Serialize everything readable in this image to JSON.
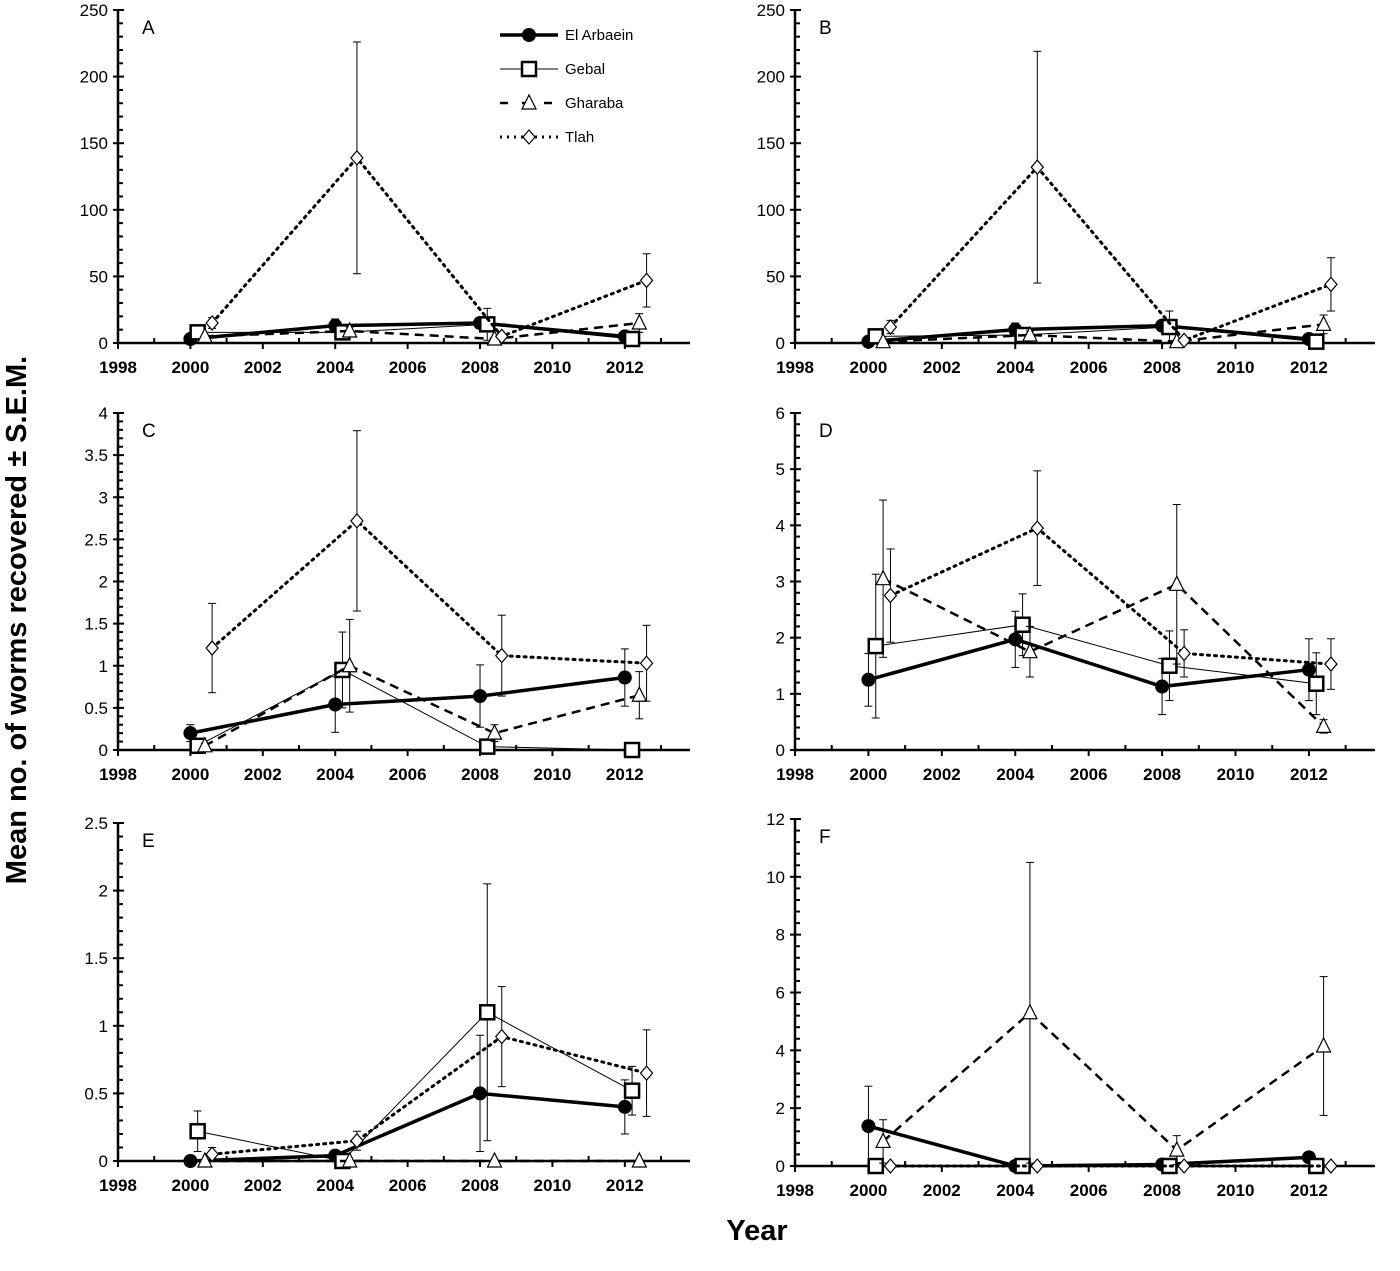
{
  "chart_data": {
    "type": "line",
    "ylabel": "Mean no. of worms recovered ± S.E.M.",
    "xlabel": "Year",
    "legend": {
      "placement": "top-right of panel A",
      "entries": [
        "El Arbaein",
        "Gebal",
        "Gharaba",
        "Tlah"
      ]
    },
    "series_styles": [
      {
        "name": "El Arbaein",
        "marker": "filled-circle",
        "line": "thick-solid"
      },
      {
        "name": "Gebal",
        "marker": "open-square",
        "line": "thin-solid"
      },
      {
        "name": "Gharaba",
        "marker": "open-triangle",
        "line": "dashed"
      },
      {
        "name": "Tlah",
        "marker": "open-diamond",
        "line": "dotted"
      }
    ],
    "xlim": [
      1998,
      2013.8
    ],
    "xticks": [
      1998,
      2000,
      2002,
      2004,
      2006,
      2008,
      2010,
      2012
    ],
    "panels": [
      {
        "label": "A",
        "ylim": [
          0,
          250
        ],
        "yticks": [
          0,
          50,
          100,
          150,
          200,
          250
        ],
        "series": [
          {
            "name": "El Arbaein",
            "x": [
              2000,
              2004,
              2008,
              2012
            ],
            "y": [
              3,
              13,
              15,
              5
            ],
            "err": [
              1,
              5,
              4,
              2
            ]
          },
          {
            "name": "Gebal",
            "x": [
              2000.2,
              2004.2,
              2008.2,
              2012.2
            ],
            "y": [
              8,
              8,
              14,
              3
            ],
            "err": [
              2,
              2,
              12,
              1
            ]
          },
          {
            "name": "Gharaba",
            "x": [
              2000.4,
              2004.4,
              2008.4,
              2012.4
            ],
            "y": [
              5,
              9,
              3,
              15
            ],
            "err": [
              1,
              3,
              1,
              7
            ]
          },
          {
            "name": "Tlah",
            "x": [
              2000.6,
              2004.6,
              2008.6,
              2012.6
            ],
            "y": [
              15,
              139,
              5,
              47
            ],
            "err": [
              4,
              87,
              2,
              20
            ]
          }
        ]
      },
      {
        "label": "B",
        "ylim": [
          0,
          250
        ],
        "yticks": [
          0,
          50,
          100,
          150,
          200,
          250
        ],
        "series": [
          {
            "name": "El Arbaein",
            "x": [
              2000,
              2004,
              2008,
              2012
            ],
            "y": [
              1,
              10,
              13,
              3
            ],
            "err": [
              1,
              5,
              4,
              1
            ]
          },
          {
            "name": "Gebal",
            "x": [
              2000.2,
              2004.2,
              2008.2,
              2012.2
            ],
            "y": [
              5,
              6,
              12,
              1
            ],
            "err": [
              2,
              2,
              12,
              1
            ]
          },
          {
            "name": "Gharaba",
            "x": [
              2000.4,
              2004.4,
              2008.4,
              2012.4
            ],
            "y": [
              1,
              6,
              1,
              14
            ],
            "err": [
              1,
              3,
              1,
              7
            ]
          },
          {
            "name": "Tlah",
            "x": [
              2000.6,
              2004.6,
              2008.6,
              2012.6
            ],
            "y": [
              12,
              132,
              2,
              44
            ],
            "err": [
              5,
              87,
              1,
              20
            ]
          }
        ]
      },
      {
        "label": "C",
        "ylim": [
          0,
          4
        ],
        "yticks": [
          0,
          0.5,
          1,
          1.5,
          2,
          2.5,
          3,
          3.5,
          4
        ],
        "series": [
          {
            "name": "El Arbaein",
            "x": [
              2000,
              2004,
              2008,
              2012
            ],
            "y": [
              0.2,
              0.54,
              0.64,
              0.86
            ],
            "err": [
              0.1,
              0.33,
              0.37,
              0.34
            ]
          },
          {
            "name": "Gebal",
            "x": [
              2000.2,
              2004.2,
              2008.2,
              2012.2
            ],
            "y": [
              0.05,
              0.95,
              0.04,
              0
            ],
            "err": [
              0.03,
              0.45,
              0.02,
              0
            ]
          },
          {
            "name": "Gharaba",
            "x": [
              2000.4,
              2004.4,
              2008.4,
              2012.4
            ],
            "y": [
              0.05,
              1.0,
              0.2,
              0.65
            ],
            "err": [
              0.03,
              0.55,
              0.1,
              0.28
            ]
          },
          {
            "name": "Tlah",
            "x": [
              2000.6,
              2004.6,
              2008.6,
              2012.6
            ],
            "y": [
              1.21,
              2.72,
              1.12,
              1.03
            ],
            "err": [
              0.53,
              1.07,
              0.48,
              0.45
            ]
          }
        ]
      },
      {
        "label": "D",
        "ylim": [
          0,
          6
        ],
        "yticks": [
          0,
          1,
          2,
          3,
          4,
          5,
          6
        ],
        "series": [
          {
            "name": "El Arbaein",
            "x": [
              2000,
              2004,
              2008,
              2012
            ],
            "y": [
              1.25,
              1.97,
              1.13,
              1.43
            ],
            "err": [
              0.47,
              0.5,
              0.5,
              0.55
            ]
          },
          {
            "name": "Gebal",
            "x": [
              2000.2,
              2004.2,
              2008.2,
              2012.2
            ],
            "y": [
              1.85,
              2.23,
              1.5,
              1.18
            ],
            "err": [
              1.28,
              0.55,
              0.62,
              0.55
            ]
          },
          {
            "name": "Gharaba",
            "x": [
              2000.4,
              2004.4,
              2008.4,
              2012.4
            ],
            "y": [
              3.05,
              1.75,
              2.95,
              0.42
            ],
            "err": [
              1.4,
              0.45,
              1.42,
              0.12
            ]
          },
          {
            "name": "Tlah",
            "x": [
              2000.6,
              2004.6,
              2008.6,
              2012.6
            ],
            "y": [
              2.75,
              3.95,
              1.72,
              1.53
            ],
            "err": [
              0.83,
              1.02,
              0.42,
              0.45
            ]
          }
        ]
      },
      {
        "label": "E",
        "ylim": [
          0,
          2.5
        ],
        "yticks": [
          0,
          0.5,
          1,
          1.5,
          2,
          2.5
        ],
        "series": [
          {
            "name": "El Arbaein",
            "x": [
              2000,
              2004,
              2008,
              2012
            ],
            "y": [
              0,
              0.04,
              0.5,
              0.4
            ],
            "err": [
              0,
              0.02,
              0.43,
              0.2
            ]
          },
          {
            "name": "Gebal",
            "x": [
              2000.2,
              2004.2,
              2008.2,
              2012.2
            ],
            "y": [
              0.22,
              0,
              1.1,
              0.52
            ],
            "err": [
              0.15,
              0,
              0.95,
              0.18
            ]
          },
          {
            "name": "Gharaba",
            "x": [
              2000.4,
              2004.4,
              2008.4,
              2012.4
            ],
            "y": [
              0,
              0,
              0,
              0
            ],
            "err": [
              0,
              0,
              0,
              0
            ]
          },
          {
            "name": "Tlah",
            "x": [
              2000.6,
              2004.6,
              2008.6,
              2012.6
            ],
            "y": [
              0.05,
              0.15,
              0.92,
              0.65
            ],
            "err": [
              0.05,
              0.07,
              0.37,
              0.32
            ]
          }
        ]
      },
      {
        "label": "F",
        "ylim": [
          0,
          12
        ],
        "yticks": [
          0,
          2,
          4,
          6,
          8,
          10,
          12
        ],
        "series": [
          {
            "name": "El Arbaein",
            "x": [
              2000,
              2004,
              2008,
              2012
            ],
            "y": [
              1.38,
              0,
              0.05,
              0.3
            ],
            "err": [
              1.38,
              0,
              0.03,
              0.1
            ]
          },
          {
            "name": "Gebal",
            "x": [
              2000.2,
              2004.2,
              2008.2,
              2012.2
            ],
            "y": [
              0,
              0,
              0,
              0
            ],
            "err": [
              0,
              0,
              0,
              0
            ]
          },
          {
            "name": "Gharaba",
            "x": [
              2000.4,
              2004.4,
              2008.4,
              2012.4
            ],
            "y": [
              0.85,
              5.3,
              0.55,
              4.15
            ],
            "err": [
              0.75,
              5.2,
              0.5,
              2.4
            ]
          },
          {
            "name": "Tlah",
            "x": [
              2000.6,
              2004.6,
              2008.6,
              2012.6
            ],
            "y": [
              0,
              0,
              0,
              0
            ],
            "err": [
              0,
              0,
              0,
              0
            ]
          }
        ]
      }
    ]
  }
}
